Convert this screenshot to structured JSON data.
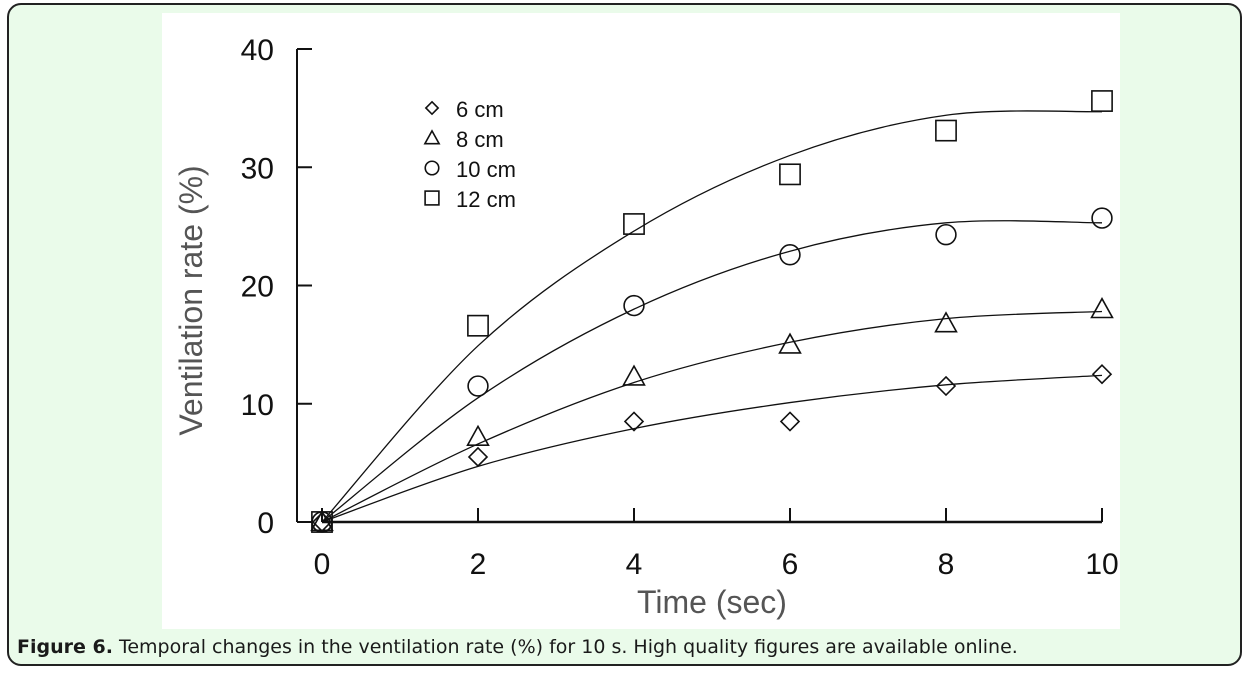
{
  "caption": {
    "label": "Figure 6.",
    "text": "Temporal changes in the ventilation rate (%) for 10 s. High quality figures are available online."
  },
  "colors": {
    "frame_background": "#eafbea",
    "plot_background": "#ffffff",
    "ink": "#111111",
    "axis_title": "#555555"
  },
  "chart_data": {
    "type": "scatter",
    "title": "",
    "xlabel": "Time (sec)",
    "ylabel": "Ventilation rate (%)",
    "xlim": [
      0,
      10
    ],
    "ylim": [
      0,
      40
    ],
    "xticks": [
      0,
      2,
      4,
      6,
      8,
      10
    ],
    "yticks": [
      0,
      10,
      20,
      30,
      40
    ],
    "grid": false,
    "legend_position": "top-left",
    "fitted_curves": true,
    "series": [
      {
        "name": "6 cm",
        "marker": "diamond",
        "x": [
          0,
          2,
          4,
          6,
          8,
          10
        ],
        "y": [
          0,
          5.5,
          8.5,
          8.5,
          11.5,
          12.5
        ],
        "fit_y": [
          0,
          4.7,
          7.9,
          10.1,
          11.6,
          12.4
        ]
      },
      {
        "name": "8 cm",
        "marker": "triangle",
        "x": [
          0,
          2,
          4,
          6,
          8,
          10
        ],
        "y": [
          0,
          7.2,
          12.3,
          15.0,
          16.8,
          18.0
        ],
        "fit_y": [
          0,
          6.6,
          11.8,
          15.2,
          17.2,
          17.8
        ]
      },
      {
        "name": "10 cm",
        "marker": "circle",
        "x": [
          0,
          2,
          4,
          6,
          8,
          10
        ],
        "y": [
          0,
          11.5,
          18.3,
          22.6,
          24.3,
          25.7
        ],
        "fit_y": [
          0,
          10.5,
          18.0,
          22.9,
          25.3,
          25.3
        ]
      },
      {
        "name": "12 cm",
        "marker": "square",
        "x": [
          0,
          2,
          4,
          6,
          8,
          10
        ],
        "y": [
          0,
          16.6,
          25.2,
          29.4,
          33.1,
          35.6
        ],
        "fit_y": [
          0,
          14.9,
          24.6,
          31.0,
          34.4,
          34.7
        ]
      }
    ]
  }
}
